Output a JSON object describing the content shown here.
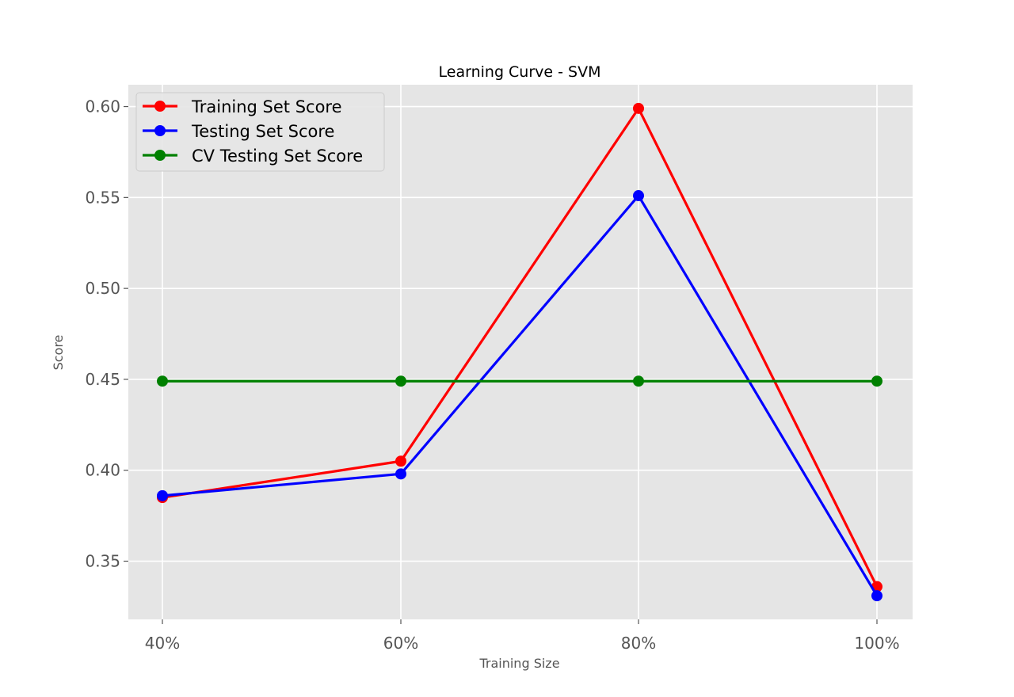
{
  "chart_data": {
    "type": "line",
    "title": "Learning Curve - SVM",
    "xlabel": "Training Size",
    "ylabel": "Score",
    "categories": [
      "40%",
      "60%",
      "80%",
      "100%"
    ],
    "ylim": [
      0.318,
      0.612
    ],
    "yticks": [
      0.35,
      0.4,
      0.45,
      0.5,
      0.55,
      0.6
    ],
    "ytick_labels": [
      "0.35",
      "0.40",
      "0.45",
      "0.50",
      "0.55",
      "0.60"
    ],
    "grid": true,
    "legend_position": "top-left",
    "background_color": "#e5e5e5",
    "series": [
      {
        "name": "Training Set Score",
        "color": "#ff0000",
        "values": [
          0.385,
          0.405,
          0.599,
          0.336
        ]
      },
      {
        "name": "Testing Set Score",
        "color": "#0000ff",
        "values": [
          0.386,
          0.398,
          0.551,
          0.331
        ]
      },
      {
        "name": "CV Testing Set Score",
        "color": "#008000",
        "values": [
          0.449,
          0.449,
          0.449,
          0.449
        ]
      }
    ]
  }
}
